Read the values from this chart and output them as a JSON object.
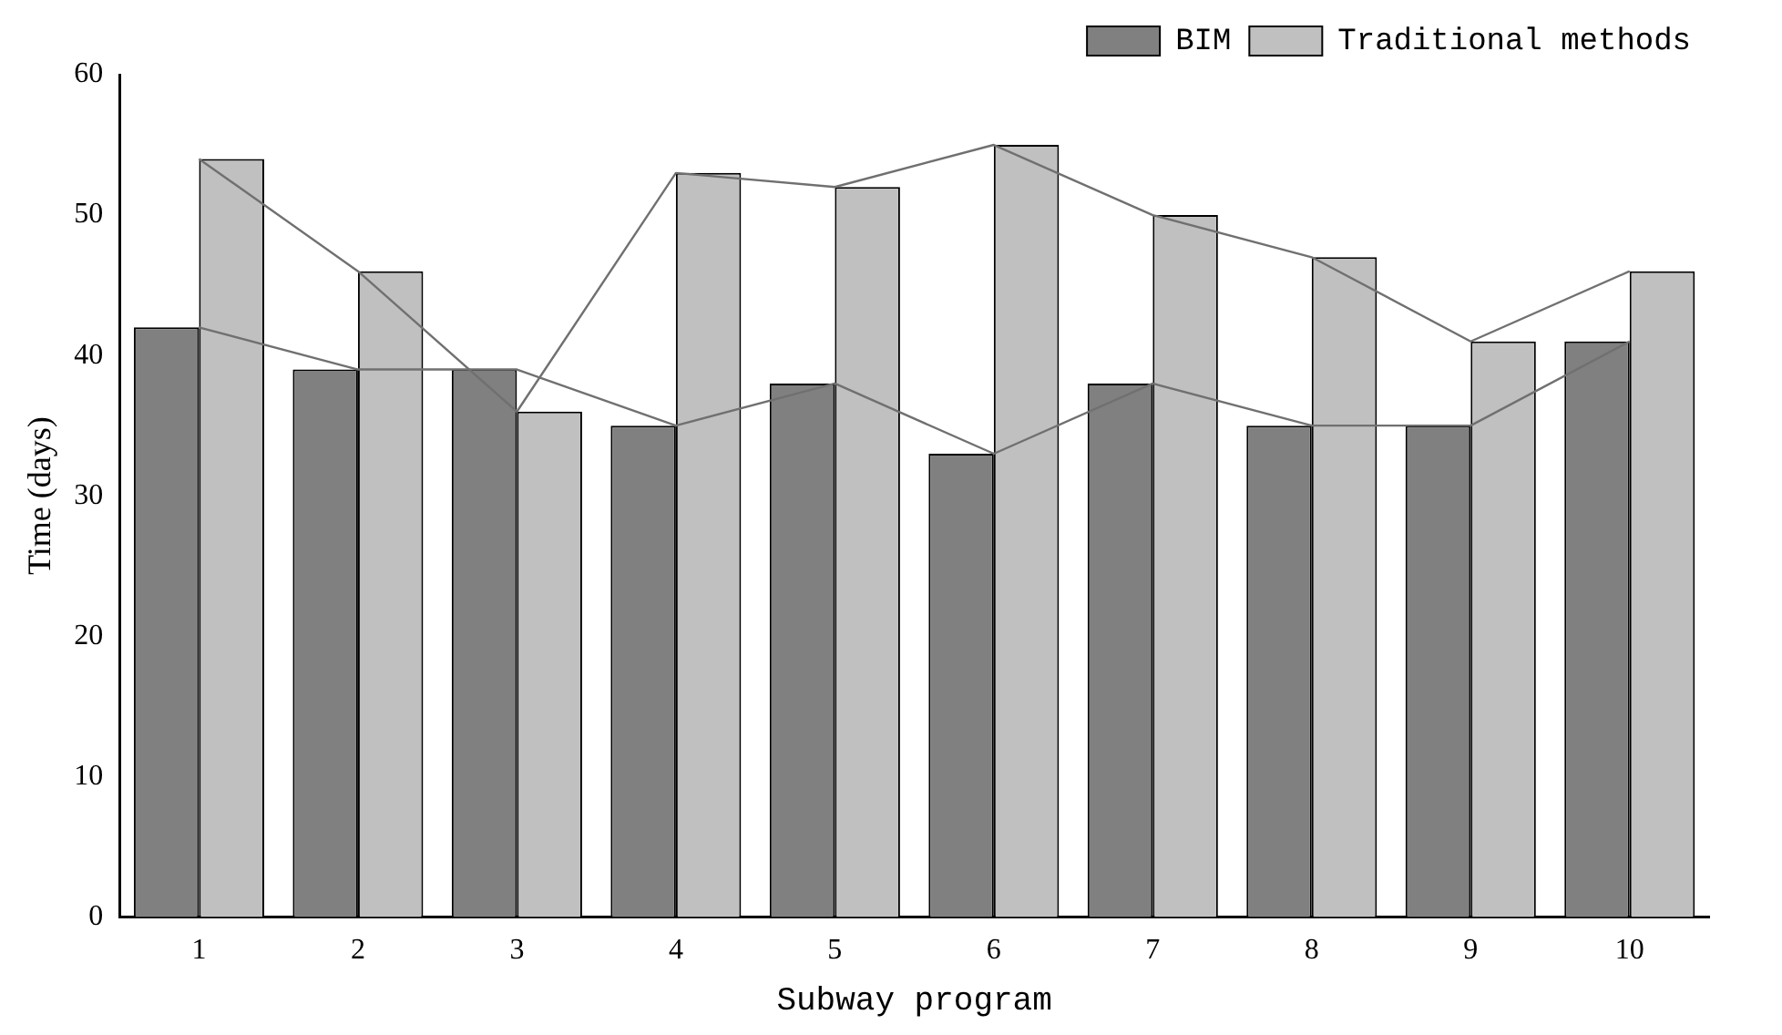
{
  "chart_data": {
    "type": "bar",
    "xlabel": "Subway program",
    "ylabel": "Time (days)",
    "categories": [
      "1",
      "2",
      "3",
      "4",
      "5",
      "6",
      "7",
      "8",
      "9",
      "10"
    ],
    "series": [
      {
        "name": "BIM",
        "color": "#808080",
        "values": [
          42,
          39,
          39,
          35,
          38,
          33,
          38,
          35,
          35,
          41
        ]
      },
      {
        "name": "Traditional methods",
        "color": "#c0c0c0",
        "values": [
          54,
          46,
          36,
          53,
          52,
          55,
          50,
          47,
          41,
          46
        ]
      },
      {
        "type": "line",
        "color": "#707070",
        "values": [
          42,
          39,
          39,
          35,
          38,
          33,
          38,
          35,
          35,
          41
        ]
      },
      {
        "type": "line",
        "color": "#707070",
        "values": [
          54,
          46,
          36,
          53,
          52,
          55,
          50,
          47,
          41,
          46
        ]
      }
    ],
    "ylim": [
      0,
      60
    ],
    "yticks": [
      0,
      10,
      20,
      30,
      40,
      50,
      60
    ],
    "grid": false,
    "legend": "top right",
    "marker": "none",
    "line_style": "solid"
  }
}
